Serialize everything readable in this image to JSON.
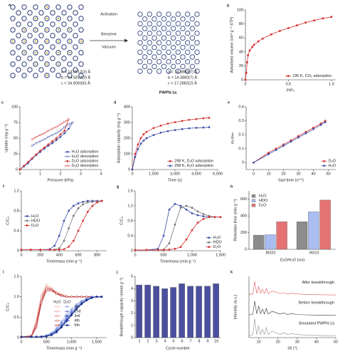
{
  "panel_a": {
    "label": "a",
    "activation": "Activation",
    "benzene": "Benzene",
    "vacuum": "Vacuum",
    "left_cell": [
      "a = 14.5812(3) Å",
      "b = 14.5812(3) Å",
      "c = 34.9093(6) Å"
    ],
    "right_cell": [
      "a = 14.3883(7) Å",
      "b = 14.3883(7) Å",
      "c = 17.2882(2) Å"
    ],
    "right_name": "PWPN-1a"
  },
  "chart_data": [
    {
      "type": "line",
      "label": "b",
      "xlabel": "P/P₀",
      "ylabel": "Adsorbed volume (cm³ g⁻¹ STP)",
      "xlim": [
        0,
        1.05
      ],
      "xticks": [
        0,
        0.5,
        {
          "value": 1,
          "label": "1.0"
        }
      ],
      "ylim": [
        0,
        100
      ],
      "yticks": [
        0,
        20,
        40,
        60,
        80,
        100
      ],
      "legend": "bottom-right",
      "series": [
        {
          "name": "195 K, CO₂ adsorption",
          "color": "#d62f2f",
          "marker": "square",
          "x": [
            0,
            0.01,
            0.02,
            0.03,
            0.05,
            0.08,
            0.1,
            0.15,
            0.2,
            0.3,
            0.4,
            0.5,
            0.6,
            0.7,
            0.8,
            0.9,
            1.0
          ],
          "values": [
            0,
            10,
            25,
            35,
            42,
            47,
            50,
            55,
            59,
            65,
            70,
            74,
            78,
            82,
            85,
            88,
            90
          ]
        }
      ]
    },
    {
      "type": "line",
      "label": "c",
      "xlabel": "Pressure (kPa)",
      "ylabel": "Uptake (mg g⁻¹)",
      "xlim": [
        0,
        4
      ],
      "xticks": [
        0,
        1,
        2,
        3,
        4
      ],
      "ylim": [
        0,
        100
      ],
      "yticks": [
        0,
        25,
        50,
        75,
        100
      ],
      "legend": "bottom-right",
      "series": [
        {
          "name": "H₂O adsorption",
          "color": "#3b4fa8",
          "marker": "filled",
          "x": [
            0,
            0.2,
            0.4,
            0.6,
            0.8,
            1.0,
            1.2,
            1.4,
            1.6,
            1.8,
            2.0,
            2.2,
            2.4,
            2.6
          ],
          "values": [
            0,
            5,
            10,
            17,
            23,
            28,
            33,
            38,
            42,
            47,
            52,
            58,
            65,
            75
          ]
        },
        {
          "name": "H₂O desorption",
          "color": "#3b4fa8",
          "marker": "open",
          "x": [
            2.6,
            2.4,
            2.2,
            2.0,
            1.8,
            1.6,
            1.4,
            1.2,
            1.0,
            0.8,
            0.6
          ],
          "values": [
            75,
            72,
            68,
            62,
            58,
            55,
            52,
            48,
            45,
            42,
            38
          ]
        },
        {
          "name": "D₂O adsorption",
          "color": "#d62f2f",
          "marker": "filled",
          "x": [
            0,
            0.2,
            0.4,
            0.6,
            0.8,
            1.0,
            1.2,
            1.4,
            1.6,
            1.8,
            2.0,
            2.2,
            2.4
          ],
          "values": [
            0,
            6,
            12,
            18,
            24,
            30,
            35,
            40,
            45,
            50,
            56,
            62,
            80
          ]
        },
        {
          "name": "D₂O desorption",
          "color": "#d62f2f",
          "marker": "open",
          "x": [
            2.4,
            2.2,
            2.0,
            1.8,
            1.6,
            1.4,
            1.2,
            1.0,
            0.8,
            0.6
          ],
          "values": [
            80,
            76,
            72,
            68,
            65,
            62,
            58,
            55,
            52,
            48
          ]
        }
      ]
    },
    {
      "type": "line",
      "label": "d",
      "xlabel": "Time (s)",
      "ylabel": "Adsorption capacity (mg g⁻¹)",
      "xlim": [
        0,
        6000
      ],
      "xticks": [
        0,
        {
          "value": 1500,
          "label": "1,500"
        },
        {
          "value": 3000,
          "label": "3,000"
        },
        {
          "value": 4500,
          "label": "4,500"
        },
        {
          "value": 6000,
          "label": "6,000"
        }
      ],
      "ylim": [
        0,
        400
      ],
      "yticks": [
        0,
        100,
        200,
        300,
        400
      ],
      "legend": "bottom-right",
      "x": [
        0,
        200,
        400,
        600,
        800,
        1000,
        1500,
        2000,
        2500,
        3000,
        3500,
        4000,
        4500,
        5000,
        5400
      ],
      "series": [
        {
          "name": "298 K, D₂O adsorption",
          "color": "#d62f2f",
          "marker": "filled",
          "values": [
            0,
            100,
            160,
            200,
            225,
            240,
            265,
            280,
            293,
            302,
            310,
            317,
            322,
            327,
            330
          ]
        },
        {
          "name": "298 K, H₂O adsorption",
          "color": "#3b4fa8",
          "marker": "filled",
          "values": [
            0,
            80,
            130,
            165,
            185,
            200,
            220,
            235,
            245,
            252,
            258,
            263,
            266,
            268,
            270
          ]
        }
      ]
    },
    {
      "type": "line",
      "label": "e",
      "xlabel": "Sqrt time (s¹ᐟ²)",
      "ylabel": "mₜ/m∞",
      "xlim": [
        -5,
        55
      ],
      "xticks": [
        0,
        10,
        20,
        30,
        40,
        50
      ],
      "ylim": [
        -0.05,
        0.4
      ],
      "yticks": [
        0,
        0.1,
        0.2,
        0.3,
        0.4
      ],
      "legend": "bottom-right",
      "x": [
        0,
        10,
        15,
        20,
        25,
        30,
        35,
        40,
        45,
        48
      ],
      "series": [
        {
          "name": "D₂O",
          "color": "#d62f2f",
          "marker": "filled",
          "values": [
            0,
            0.07,
            0.1,
            0.13,
            0.16,
            0.19,
            0.22,
            0.25,
            0.28,
            0.3
          ]
        },
        {
          "name": "H₂O",
          "color": "#3b4fa8",
          "marker": "filled",
          "values": [
            0,
            0.06,
            0.09,
            0.12,
            0.15,
            0.18,
            0.21,
            0.24,
            0.27,
            0.29
          ]
        }
      ]
    },
    {
      "type": "line",
      "label": "f",
      "xlabel": "Time/mass (min g⁻¹)",
      "ylabel": "C/C₀",
      "xlim": [
        0,
        900
      ],
      "xticks": [
        0,
        200,
        400,
        600,
        800
      ],
      "ylim": [
        0,
        1.2
      ],
      "yticks": [
        0,
        0.4,
        0.8,
        1.2
      ],
      "legend": "center-left",
      "x": [
        0,
        100,
        200,
        300,
        350,
        400,
        450,
        500,
        550,
        600,
        650,
        700,
        750,
        800,
        850
      ],
      "series": [
        {
          "name": "H₂O",
          "color": "#3b4fa8",
          "marker": "filled",
          "values": [
            0.02,
            0.02,
            0.02,
            0.03,
            0.1,
            0.3,
            0.6,
            0.8,
            0.9,
            0.95,
            0.98,
            1.0,
            1.0,
            1.0,
            1.0
          ]
        },
        {
          "name": "HDO",
          "color": "#777777",
          "marker": "filled",
          "values": [
            0.02,
            0.02,
            0.02,
            0.02,
            0.02,
            0.05,
            0.2,
            0.45,
            0.7,
            0.85,
            0.93,
            0.97,
            0.98,
            0.99,
            1.0
          ]
        },
        {
          "name": "D₂O",
          "color": "#d62f2f",
          "marker": "filled",
          "values": [
            0.02,
            0.02,
            0.02,
            0.02,
            0.02,
            0.02,
            0.03,
            0.08,
            0.2,
            0.4,
            0.6,
            0.78,
            0.9,
            0.97,
            1.0
          ]
        }
      ]
    },
    {
      "type": "line",
      "label": "g",
      "xlabel": "Time/mass (min g⁻¹)",
      "ylabel": "C/C₀",
      "xlim": [
        0,
        1500
      ],
      "xticks": [
        0,
        500,
        {
          "value": 1000,
          "label": "1,000"
        },
        {
          "value": 1500,
          "label": "1,500"
        }
      ],
      "ylim": [
        0,
        1.6
      ],
      "yticks": [
        0,
        0.4,
        0.8,
        1.2,
        1.6
      ],
      "legend": "bottom-right",
      "x": [
        0,
        200,
        400,
        500,
        600,
        700,
        800,
        900,
        1000,
        1100,
        1200,
        1300,
        1400,
        1500
      ],
      "series": [
        {
          "name": "H₂O",
          "color": "#3b4fa8",
          "marker": "filled",
          "values": [
            0.02,
            0.02,
            0.05,
            0.4,
            1.1,
            1.25,
            1.2,
            1.1,
            1.0,
            0.95,
            0.92,
            0.9,
            0.9,
            0.9
          ]
        },
        {
          "name": "HDO",
          "color": "#777777",
          "marker": "filled",
          "values": [
            0.02,
            0.02,
            0.02,
            0.03,
            0.2,
            0.7,
            1.15,
            1.2,
            1.15,
            1.05,
            0.98,
            0.93,
            0.9,
            0.9
          ]
        },
        {
          "name": "D₂O",
          "color": "#d62f2f",
          "marker": "filled",
          "values": [
            0.02,
            0.02,
            0.02,
            0.02,
            0.03,
            0.05,
            0.1,
            0.3,
            0.55,
            0.75,
            0.85,
            0.9,
            0.9,
            0.9
          ]
        }
      ]
    },
    {
      "type": "bar",
      "label": "h",
      "xlabel": "D₂O/H₂O (v/v)",
      "ylabel": "Retention time (min g⁻¹)",
      "categories": [
        "80/20",
        "90/10"
      ],
      "ylim": [
        0,
        700
      ],
      "yticks": [
        0,
        200,
        400,
        600
      ],
      "legend": "top-left",
      "series": [
        {
          "name": "H₂O",
          "color": "#8c8c8c",
          "values": [
            170,
            330
          ]
        },
        {
          "name": "HDO",
          "color": "#a9bdf0",
          "values": [
            175,
            450
          ]
        },
        {
          "name": "D₂O",
          "color": "#e57373",
          "values": [
            330,
            590
          ]
        }
      ]
    },
    {
      "type": "line",
      "label": "i",
      "xlabel": "Time/mass (min g⁻¹)",
      "ylabel": "C/C₀",
      "xlim": [
        0,
        1700
      ],
      "xticks": [
        0,
        500,
        {
          "value": 1000,
          "label": "1,000"
        },
        {
          "value": 1500,
          "label": "1,500"
        }
      ],
      "ylim": [
        0,
        1.5
      ],
      "yticks": [
        0,
        0.5,
        {
          "value": 1,
          "label": "1.0"
        },
        1.5
      ],
      "legend": "center-right",
      "legend_columns": [
        "H₂O",
        "D₂O"
      ],
      "legend_rows": [
        "1st",
        "2nd",
        "3rd",
        "4th",
        "5th"
      ],
      "x": [
        0,
        200,
        300,
        400,
        500,
        600,
        700,
        800,
        900,
        1000,
        1100,
        1200,
        1300,
        1400,
        1500,
        1600
      ],
      "series": [
        {
          "color": "#f2b8a0",
          "marker": "open",
          "values": [
            0.02,
            0.05,
            0.45,
            1.05,
            1.3,
            1.22,
            1.12,
            1.06,
            1.02,
            1.0,
            1.0,
            1.0,
            1.0,
            1.0,
            1.0,
            1.0
          ]
        },
        {
          "color": "#e88a8a",
          "marker": "open",
          "values": [
            0.02,
            0.05,
            0.4,
            1.0,
            1.25,
            1.2,
            1.1,
            1.05,
            1.0,
            1.0,
            1.0,
            1.0,
            1.0,
            1.0,
            1.0,
            1.0
          ]
        },
        {
          "color": "#d96a6a",
          "marker": "open",
          "values": [
            0.02,
            0.04,
            0.35,
            0.95,
            1.22,
            1.18,
            1.1,
            1.04,
            1.0,
            1.0,
            1.0,
            1.0,
            1.0,
            1.0,
            1.0,
            1.0
          ]
        },
        {
          "color": "#c94c4c",
          "marker": "open",
          "values": [
            0.02,
            0.04,
            0.3,
            0.9,
            1.2,
            1.17,
            1.08,
            1.03,
            1.0,
            1.0,
            1.0,
            1.0,
            1.0,
            1.0,
            1.0,
            1.0
          ]
        },
        {
          "color": "#b32c2c",
          "marker": "open",
          "values": [
            0.02,
            0.03,
            0.25,
            0.85,
            1.15,
            1.15,
            1.07,
            1.02,
            1.0,
            1.0,
            1.0,
            1.0,
            1.0,
            1.0,
            1.0,
            1.0
          ]
        },
        {
          "color": "#9fb3e8",
          "marker": "filled",
          "values": [
            0.02,
            0.02,
            0.02,
            0.03,
            0.06,
            0.12,
            0.24,
            0.4,
            0.56,
            0.7,
            0.82,
            0.9,
            0.96,
            1.0,
            1.0,
            1.0
          ]
        },
        {
          "color": "#6f88d6",
          "marker": "filled",
          "values": [
            0.02,
            0.02,
            0.02,
            0.03,
            0.05,
            0.1,
            0.2,
            0.35,
            0.5,
            0.65,
            0.78,
            0.88,
            0.95,
            1.0,
            1.0,
            1.0
          ]
        },
        {
          "color": "#4b64c4",
          "marker": "filled",
          "values": [
            0.02,
            0.02,
            0.02,
            0.02,
            0.04,
            0.08,
            0.17,
            0.3,
            0.45,
            0.6,
            0.74,
            0.85,
            0.93,
            0.98,
            1.0,
            1.0
          ]
        },
        {
          "color": "#2f47a8",
          "marker": "filled",
          "values": [
            0.02,
            0.02,
            0.02,
            0.02,
            0.03,
            0.07,
            0.15,
            0.27,
            0.42,
            0.57,
            0.71,
            0.83,
            0.92,
            0.97,
            1.0,
            1.0
          ]
        },
        {
          "color": "#1a2f8a",
          "marker": "filled",
          "values": [
            0.02,
            0.02,
            0.02,
            0.02,
            0.03,
            0.06,
            0.13,
            0.25,
            0.4,
            0.55,
            0.7,
            0.82,
            0.91,
            0.97,
            1.0,
            1.0
          ]
        }
      ]
    },
    {
      "type": "bar",
      "label": "j",
      "xlabel": "Cycle number",
      "ylabel": "Breakthrough capacity (mmol g⁻¹)",
      "categories": [
        "1",
        "2",
        "3",
        "4",
        "5",
        "6",
        "7",
        "8",
        "9",
        "10"
      ],
      "values": [
        4.3,
        4.3,
        4.2,
        4.0,
        4.1,
        4.4,
        4.2,
        4.2,
        4.2,
        4.4
      ],
      "color": "#4b509e",
      "ylim": [
        0,
        5
      ],
      "yticks": [
        0,
        1,
        2,
        3,
        4,
        5
      ]
    },
    {
      "type": "line",
      "label": "k",
      "xlabel": "2θ (°)",
      "ylabel": "Intensity (a.u.)",
      "offset": true,
      "xlim": [
        5,
        50
      ],
      "xticks": [
        10,
        20,
        30,
        40,
        50
      ],
      "ylim": [
        0,
        1
      ],
      "x": [
        5,
        7,
        8,
        9,
        10,
        11,
        12,
        13,
        14,
        15,
        17,
        19,
        21,
        23,
        25,
        27,
        30,
        33,
        36,
        40,
        45,
        50
      ],
      "series": [
        {
          "name": "After breakthrough",
          "color": "#e05a5a",
          "values": [
            0.05,
            0.1,
            0.8,
            0.12,
            0.5,
            0.12,
            0.35,
            0.1,
            0.4,
            0.1,
            0.25,
            0.18,
            0.1,
            0.15,
            0.08,
            0.12,
            0.08,
            0.06,
            0.05,
            0.04,
            0.03,
            0.02
          ]
        },
        {
          "name": "Before breakthrough",
          "color": "#333333",
          "values": [
            0.05,
            0.1,
            0.85,
            0.12,
            0.55,
            0.12,
            0.38,
            0.1,
            0.42,
            0.1,
            0.26,
            0.18,
            0.1,
            0.16,
            0.08,
            0.12,
            0.08,
            0.06,
            0.05,
            0.04,
            0.03,
            0.02
          ]
        },
        {
          "name": "Simulated PWPN-1a",
          "color": "#8c8c8c",
          "values": [
            0,
            0.1,
            1,
            0.1,
            0.6,
            0.1,
            0.4,
            0.1,
            0.5,
            0.1,
            0.3,
            0.2,
            0.1,
            0.2,
            0.1,
            0.15,
            0.1,
            0.08,
            0.05,
            0.05,
            0.03,
            0.02
          ]
        }
      ]
    }
  ]
}
